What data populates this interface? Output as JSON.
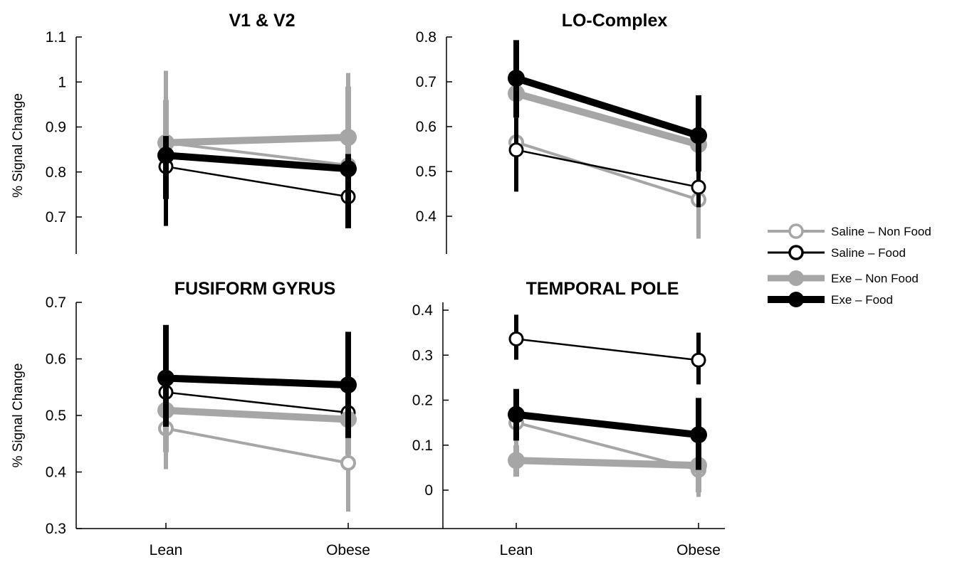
{
  "legend": [
    {
      "name": "Saline – Non Food",
      "color": "#a6a6a6",
      "marker": "open",
      "width": 4
    },
    {
      "name": "Saline – Food",
      "color": "#000000",
      "marker": "open",
      "width": 3
    },
    {
      "name": "Exe – Non Food",
      "color": "#a6a6a6",
      "marker": "filled",
      "width": 9
    },
    {
      "name": "Exe – Food",
      "color": "#000000",
      "marker": "filled",
      "width": 10
    }
  ],
  "chart_data": [
    {
      "type": "line",
      "title": "V1 & V2",
      "ylabel": "% Signal Change",
      "xlabel": "",
      "categories": [
        "Lean",
        "Obese"
      ],
      "ylim": [
        0.62,
        1.1
      ],
      "yticks": [
        "0.7",
        "0.8",
        "0.9",
        "1",
        "1.1"
      ],
      "series": [
        {
          "name": "Saline – Non Food",
          "values": [
            0.865,
            0.815
          ],
          "err_low": [
            0.74,
            0.72
          ],
          "err_high": [
            1.025,
            1.02
          ]
        },
        {
          "name": "Saline – Food",
          "values": [
            0.812,
            0.745
          ],
          "err_low": [
            0.68,
            0.68
          ],
          "err_high": [
            0.86,
            0.83
          ]
        },
        {
          "name": "Exe – Non Food",
          "values": [
            0.865,
            0.877
          ],
          "err_low": [
            0.76,
            0.76
          ],
          "err_high": [
            0.96,
            0.99
          ]
        },
        {
          "name": "Exe – Food",
          "values": [
            0.837,
            0.807
          ],
          "err_low": [
            0.74,
            0.675
          ],
          "err_high": [
            0.88,
            0.84
          ]
        }
      ]
    },
    {
      "type": "line",
      "title": "LO-Complex",
      "ylabel": "",
      "xlabel": "",
      "categories": [
        "Lean",
        "Obese"
      ],
      "ylim": [
        0.32,
        0.8
      ],
      "yticks": [
        "0.4",
        "0.5",
        "0.6",
        "0.7",
        "0.8"
      ],
      "series": [
        {
          "name": "Saline – Non Food",
          "values": [
            0.565,
            0.437
          ],
          "err_low": [
            0.5,
            0.35
          ],
          "err_high": [
            0.63,
            0.5
          ]
        },
        {
          "name": "Saline – Food",
          "values": [
            0.548,
            0.465
          ],
          "err_low": [
            0.455,
            0.42
          ],
          "err_high": [
            0.62,
            0.5
          ]
        },
        {
          "name": "Exe – Non Food",
          "values": [
            0.674,
            0.56
          ],
          "err_low": [
            0.62,
            0.5
          ],
          "err_high": [
            0.73,
            0.62
          ]
        },
        {
          "name": "Exe – Food",
          "values": [
            0.708,
            0.58
          ],
          "err_low": [
            0.62,
            0.5
          ],
          "err_high": [
            0.793,
            0.67
          ]
        }
      ]
    },
    {
      "type": "line",
      "title": "FUSIFORM GYRUS",
      "ylabel": "% Signal Change",
      "xlabel": "",
      "categories": [
        "Lean",
        "Obese"
      ],
      "ylim": [
        0.3,
        0.7
      ],
      "yticks": [
        "0.3",
        "0.4",
        "0.5",
        "0.6",
        "0.7"
      ],
      "series": [
        {
          "name": "Saline – Non Food",
          "values": [
            0.477,
            0.416
          ],
          "err_low": [
            0.405,
            0.33
          ],
          "err_high": [
            0.55,
            0.49
          ]
        },
        {
          "name": "Saline – Food",
          "values": [
            0.541,
            0.505
          ],
          "err_low": [
            0.48,
            0.45
          ],
          "err_high": [
            0.6,
            0.56
          ]
        },
        {
          "name": "Exe – Non Food",
          "values": [
            0.509,
            0.493
          ],
          "err_low": [
            0.435,
            0.43
          ],
          "err_high": [
            0.58,
            0.56
          ]
        },
        {
          "name": "Exe – Food",
          "values": [
            0.566,
            0.554
          ],
          "err_low": [
            0.48,
            0.46
          ],
          "err_high": [
            0.66,
            0.648
          ]
        }
      ]
    },
    {
      "type": "line",
      "title": "TEMPORAL POLE",
      "ylabel": "",
      "xlabel": "",
      "categories": [
        "Lean",
        "Obese"
      ],
      "ylim": [
        -0.085,
        0.4
      ],
      "yticks": [
        "0",
        "0.1",
        "0.2",
        "0.3",
        "0.4"
      ],
      "series": [
        {
          "name": "Saline – Non Food",
          "values": [
            0.15,
            0.045
          ],
          "err_low": [
            0.08,
            -0.015
          ],
          "err_high": [
            0.22,
            0.1
          ]
        },
        {
          "name": "Saline – Food",
          "values": [
            0.336,
            0.289
          ],
          "err_low": [
            0.29,
            0.235
          ],
          "err_high": [
            0.39,
            0.35
          ]
        },
        {
          "name": "Exe – Non Food",
          "values": [
            0.066,
            0.055
          ],
          "err_low": [
            0.03,
            -0.005
          ],
          "err_high": [
            0.1,
            0.1
          ]
        },
        {
          "name": "Exe – Food",
          "values": [
            0.168,
            0.123
          ],
          "err_low": [
            0.11,
            0.045
          ],
          "err_high": [
            0.225,
            0.205
          ]
        }
      ]
    }
  ]
}
